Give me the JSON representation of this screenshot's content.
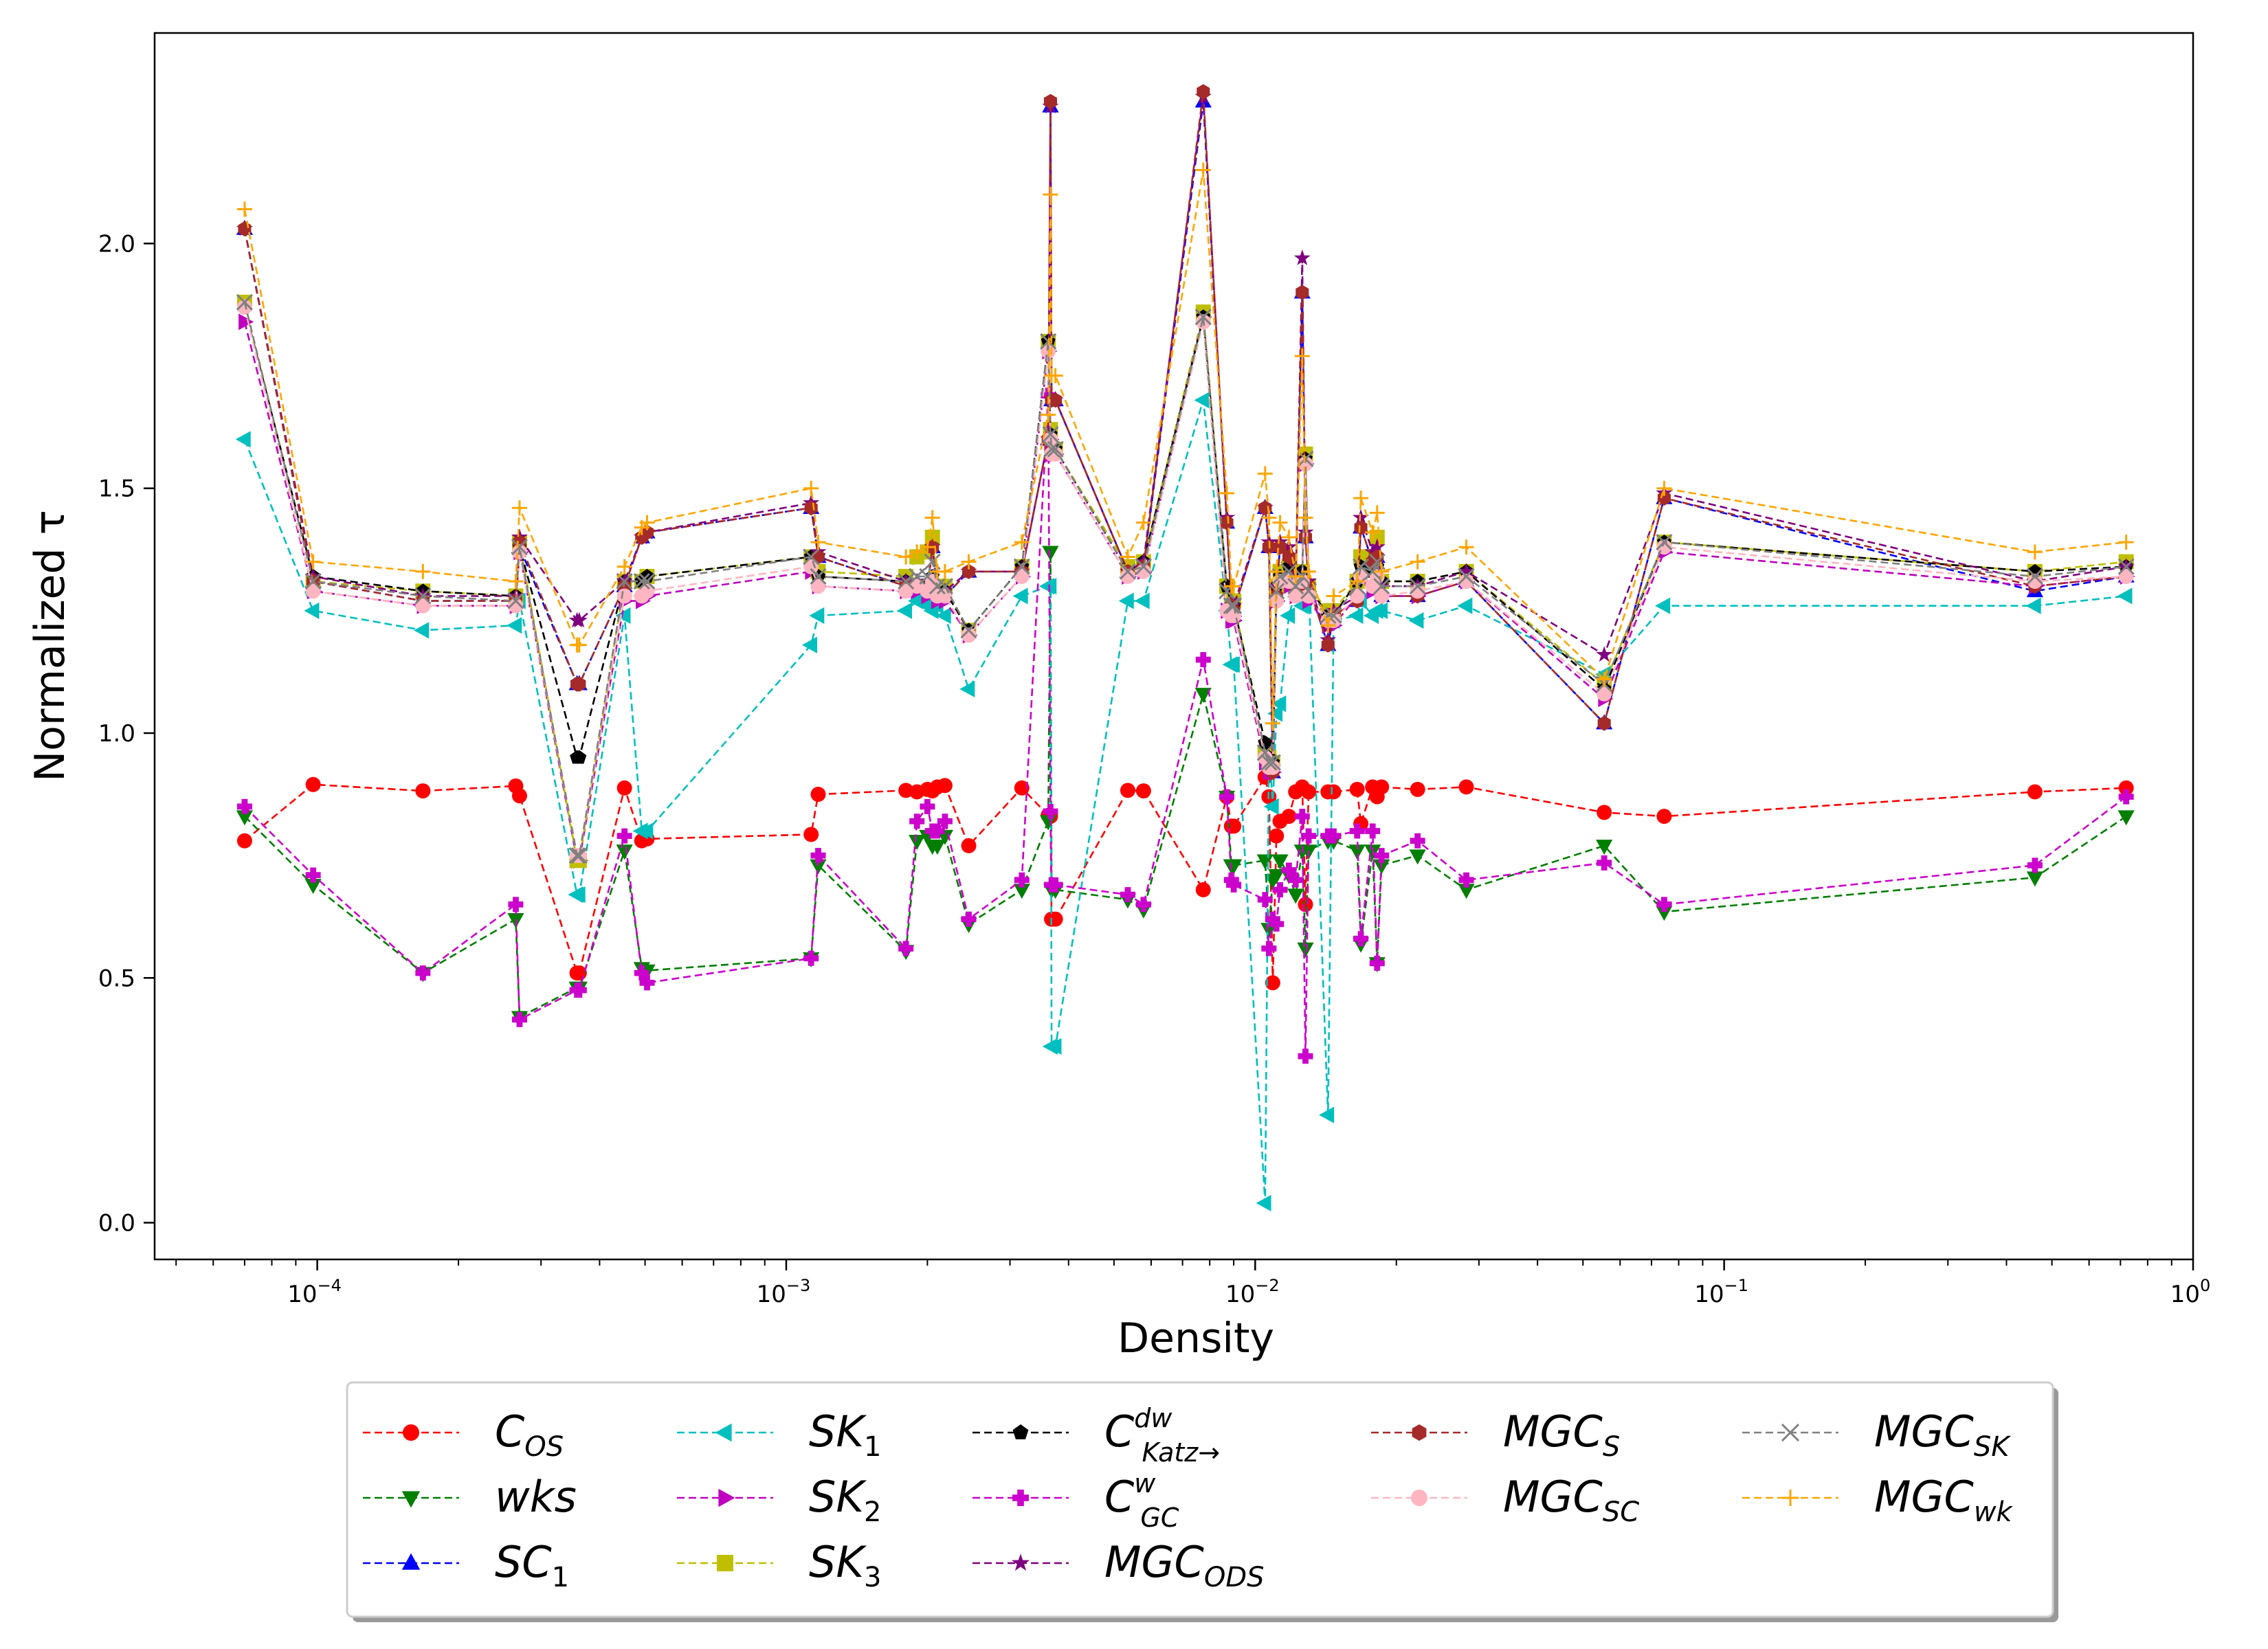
{
  "chart_data": {
    "type": "line",
    "xscale": "log",
    "xlabel": "Density",
    "ylabel": "Normalized τ",
    "xlim": [
      4.5e-05,
      1.0
    ],
    "ylim": [
      -0.075,
      2.43
    ],
    "x_ticks": [
      {
        "value": 0.0001,
        "base": "10",
        "exp": "−4"
      },
      {
        "value": 0.001,
        "base": "10",
        "exp": "−3"
      },
      {
        "value": 0.01,
        "base": "10",
        "exp": "−2"
      },
      {
        "value": 0.1,
        "base": "10",
        "exp": "−1"
      },
      {
        "value": 1,
        "base": "10",
        "exp": "0"
      }
    ],
    "y_ticks": [
      {
        "value": 0.0,
        "label": "0.0"
      },
      {
        "value": 0.5,
        "label": "0.5"
      },
      {
        "value": 1.0,
        "label": "1.0"
      },
      {
        "value": 1.5,
        "label": "1.5"
      },
      {
        "value": 2.0,
        "label": "2.0"
      }
    ],
    "x": [
      7e-05,
      9.8e-05,
      0.000168,
      0.000265,
      0.00027,
      0.000358,
      0.000362,
      0.000452,
      0.000492,
      0.000505,
      0.00113,
      0.00117,
      0.0018,
      0.0019,
      0.002,
      0.00205,
      0.0021,
      0.00218,
      0.00245,
      0.00318,
      0.00362,
      0.00366,
      0.00368,
      0.00375,
      0.00535,
      0.00578,
      0.00775,
      0.0087,
      0.0089,
      0.009,
      0.0105,
      0.0107,
      0.0109,
      0.0111,
      0.0113,
      0.0118,
      0.0122,
      0.0126,
      0.0128,
      0.013,
      0.0143,
      0.0147,
      0.0165,
      0.0168,
      0.0178,
      0.0182,
      0.0186,
      0.0222,
      0.0282,
      0.0555,
      0.0745,
      0.46,
      0.72
    ],
    "series": [
      {
        "name": "C_OS",
        "label_main": "C",
        "label_sub": "OS",
        "label_sup": "",
        "color": "#ff0000",
        "marker": "circle",
        "values": [
          0.78,
          0.895,
          0.882,
          0.892,
          0.872,
          0.51,
          0.51,
          0.888,
          0.78,
          0.784,
          0.793,
          0.875,
          0.883,
          0.88,
          0.885,
          0.882,
          0.89,
          0.893,
          0.77,
          0.888,
          0.832,
          0.83,
          0.62,
          0.62,
          0.883,
          0.882,
          0.68,
          0.87,
          0.81,
          0.81,
          0.91,
          0.87,
          0.49,
          0.79,
          0.82,
          0.83,
          0.88,
          0.89,
          0.65,
          0.88,
          0.88,
          0.88,
          0.885,
          0.815,
          0.89,
          0.87,
          0.89,
          0.885,
          0.89,
          0.838,
          0.83,
          0.88,
          0.888
        ]
      },
      {
        "name": "wks",
        "label_main": "wks",
        "label_sub": "",
        "label_sup": "",
        "color": "#007f00",
        "marker": "tri-down",
        "values": [
          0.83,
          0.69,
          0.51,
          0.62,
          0.42,
          0.48,
          0.48,
          0.76,
          0.52,
          0.515,
          0.54,
          0.73,
          0.555,
          0.78,
          0.79,
          0.77,
          0.77,
          0.79,
          0.61,
          0.68,
          0.82,
          1.37,
          0.68,
          0.68,
          0.66,
          0.64,
          1.08,
          0.87,
          0.73,
          0.73,
          0.74,
          0.6,
          0.7,
          0.71,
          0.74,
          0.71,
          0.67,
          0.76,
          0.56,
          0.76,
          0.78,
          0.78,
          0.76,
          0.57,
          0.76,
          0.53,
          0.73,
          0.75,
          0.68,
          0.77,
          0.635,
          0.705,
          0.83
        ]
      },
      {
        "name": "SC_1",
        "label_main": "SC",
        "label_sub": "1",
        "label_sup": "",
        "color": "#0000ff",
        "marker": "tri-up",
        "values": [
          2.03,
          1.31,
          1.27,
          1.27,
          1.38,
          1.1,
          1.1,
          1.3,
          1.4,
          1.41,
          1.46,
          1.36,
          1.3,
          1.3,
          1.29,
          1.38,
          1.28,
          1.28,
          1.33,
          1.33,
          1.6,
          2.28,
          1.68,
          1.68,
          1.33,
          1.34,
          2.29,
          1.43,
          1.26,
          1.25,
          1.46,
          1.38,
          0.92,
          1.28,
          1.38,
          1.36,
          1.29,
          1.9,
          1.4,
          1.3,
          1.18,
          1.24,
          1.27,
          1.42,
          1.35,
          1.36,
          1.28,
          1.28,
          1.31,
          1.02,
          1.48,
          1.29,
          1.32
        ]
      },
      {
        "name": "SK_1",
        "label_main": "SK",
        "label_sub": "1",
        "label_sup": "",
        "color": "#00bfbf",
        "marker": "tri-left",
        "values": [
          1.6,
          1.25,
          1.21,
          1.22,
          1.27,
          0.67,
          0.67,
          1.24,
          0.8,
          0.8,
          1.18,
          1.24,
          1.25,
          1.27,
          1.26,
          1.25,
          1.26,
          1.24,
          1.09,
          1.28,
          1.3,
          1.3,
          0.36,
          0.36,
          1.27,
          1.27,
          1.68,
          1.25,
          1.14,
          1.14,
          0.04,
          0.98,
          0.85,
          1.04,
          1.06,
          1.24,
          1.29,
          1.26,
          1.26,
          1.3,
          0.22,
          1.23,
          1.24,
          1.27,
          1.24,
          1.25,
          1.25,
          1.23,
          1.26,
          1.12,
          1.26,
          1.26,
          1.28
        ]
      },
      {
        "name": "SK_2",
        "label_main": "SK",
        "label_sub": "2",
        "label_sup": "",
        "color": "#bf00bf",
        "marker": "tri-right",
        "values": [
          1.84,
          1.29,
          1.26,
          1.26,
          1.37,
          0.74,
          0.74,
          1.27,
          1.27,
          1.28,
          1.33,
          1.3,
          1.29,
          1.29,
          1.28,
          1.31,
          1.27,
          1.27,
          1.2,
          1.32,
          1.78,
          1.6,
          1.57,
          1.57,
          1.32,
          1.33,
          1.85,
          1.25,
          1.23,
          1.23,
          0.94,
          0.92,
          0.92,
          1.27,
          1.3,
          1.3,
          1.28,
          1.3,
          1.55,
          1.27,
          1.22,
          1.22,
          1.28,
          1.31,
          1.29,
          1.31,
          1.28,
          1.28,
          1.31,
          1.07,
          1.37,
          1.3,
          1.32
        ]
      },
      {
        "name": "SK_3",
        "label_main": "SK",
        "label_sub": "3",
        "label_sup": "",
        "color": "#bfbf00",
        "marker": "square",
        "values": [
          1.88,
          1.31,
          1.29,
          1.28,
          1.39,
          0.74,
          0.74,
          1.31,
          1.31,
          1.32,
          1.36,
          1.33,
          1.32,
          1.36,
          1.37,
          1.4,
          1.3,
          1.3,
          1.21,
          1.34,
          1.8,
          1.62,
          1.58,
          1.58,
          1.34,
          1.35,
          1.86,
          1.3,
          1.27,
          1.27,
          0.96,
          0.95,
          0.94,
          1.3,
          1.33,
          1.34,
          1.31,
          1.33,
          1.57,
          1.3,
          1.25,
          1.25,
          1.31,
          1.36,
          1.36,
          1.4,
          1.31,
          1.31,
          1.33,
          1.1,
          1.39,
          1.33,
          1.35
        ]
      },
      {
        "name": "C_Katz",
        "label_main": "C",
        "label_sub": "Katz→",
        "label_sup": "dw",
        "color": "#000000",
        "marker": "pentagon",
        "values": [
          1.87,
          1.32,
          1.29,
          1.28,
          1.38,
          0.95,
          0.95,
          1.31,
          1.31,
          1.32,
          1.36,
          1.32,
          1.31,
          1.3,
          1.3,
          1.32,
          1.29,
          1.29,
          1.21,
          1.34,
          1.8,
          1.61,
          1.58,
          1.58,
          1.33,
          1.35,
          1.85,
          1.3,
          1.26,
          1.26,
          0.98,
          0.95,
          0.94,
          1.3,
          1.32,
          1.34,
          1.31,
          1.33,
          1.56,
          1.3,
          1.24,
          1.24,
          1.31,
          1.34,
          1.33,
          1.34,
          1.31,
          1.31,
          1.33,
          1.09,
          1.39,
          1.33,
          1.34
        ]
      },
      {
        "name": "C_GC",
        "label_main": "C",
        "label_sub": "GC",
        "label_sup": "w",
        "color": "#cc00cc",
        "marker": "plus",
        "values": [
          0.85,
          0.71,
          0.51,
          0.65,
          0.415,
          0.475,
          0.475,
          0.79,
          0.51,
          0.49,
          0.54,
          0.75,
          0.56,
          0.82,
          0.85,
          0.8,
          0.8,
          0.82,
          0.62,
          0.7,
          1.69,
          0.84,
          0.69,
          0.69,
          0.67,
          0.65,
          1.15,
          0.87,
          0.7,
          0.69,
          0.66,
          0.56,
          0.62,
          0.61,
          0.68,
          0.72,
          0.7,
          0.83,
          0.34,
          0.79,
          0.79,
          0.79,
          0.8,
          0.58,
          0.8,
          0.53,
          0.75,
          0.78,
          0.7,
          0.735,
          0.65,
          0.73,
          0.87
        ]
      },
      {
        "name": "MGC_ODS",
        "label_main": "MGC",
        "label_sub": "ODS",
        "label_sup": "",
        "color": "#7f007f",
        "marker": "star",
        "values": [
          2.03,
          1.32,
          1.28,
          1.28,
          1.4,
          1.23,
          1.23,
          1.31,
          1.4,
          1.41,
          1.47,
          1.37,
          1.31,
          1.31,
          1.3,
          1.38,
          1.29,
          1.29,
          1.33,
          1.33,
          1.6,
          2.28,
          1.68,
          1.68,
          1.33,
          1.35,
          2.3,
          1.44,
          1.27,
          1.26,
          1.46,
          1.39,
          0.93,
          1.3,
          1.39,
          1.38,
          1.3,
          1.97,
          1.41,
          1.31,
          1.19,
          1.25,
          1.28,
          1.44,
          1.37,
          1.38,
          1.3,
          1.3,
          1.33,
          1.16,
          1.49,
          1.31,
          1.34
        ]
      },
      {
        "name": "MGC_S",
        "label_main": "MGC",
        "label_sub": "S",
        "label_sup": "",
        "color": "#a52a2a",
        "marker": "hexagon",
        "values": [
          2.03,
          1.31,
          1.27,
          1.27,
          1.39,
          1.1,
          1.1,
          1.3,
          1.4,
          1.41,
          1.46,
          1.36,
          1.3,
          1.3,
          1.29,
          1.38,
          1.28,
          1.28,
          1.33,
          1.33,
          1.6,
          2.29,
          1.68,
          1.68,
          1.33,
          1.34,
          2.31,
          1.43,
          1.26,
          1.25,
          1.46,
          1.38,
          0.92,
          1.28,
          1.38,
          1.36,
          1.29,
          1.9,
          1.4,
          1.3,
          1.18,
          1.24,
          1.27,
          1.42,
          1.35,
          1.36,
          1.28,
          1.28,
          1.31,
          1.02,
          1.48,
          1.3,
          1.32
        ]
      },
      {
        "name": "MGC_SC",
        "label_main": "MGC",
        "label_sub": "SC",
        "label_sup": "",
        "color": "#ffb6c1",
        "marker": "circle",
        "values": [
          1.87,
          1.29,
          1.26,
          1.26,
          1.37,
          0.75,
          0.75,
          1.28,
          1.28,
          1.29,
          1.34,
          1.3,
          1.29,
          1.3,
          1.29,
          1.31,
          1.28,
          1.28,
          1.2,
          1.32,
          1.78,
          1.6,
          1.57,
          1.57,
          1.32,
          1.33,
          1.84,
          1.25,
          1.24,
          1.24,
          0.95,
          0.93,
          0.93,
          1.27,
          1.31,
          1.31,
          1.28,
          1.31,
          1.55,
          1.28,
          1.23,
          1.23,
          1.28,
          1.32,
          1.3,
          1.32,
          1.28,
          1.29,
          1.31,
          1.08,
          1.38,
          1.31,
          1.32
        ]
      },
      {
        "name": "MGC_SK",
        "label_main": "MGC",
        "label_sub": "SK",
        "label_sup": "",
        "color": "#808080",
        "marker": "x",
        "values": [
          1.88,
          1.31,
          1.28,
          1.27,
          1.38,
          0.75,
          0.75,
          1.31,
          1.31,
          1.31,
          1.36,
          1.32,
          1.31,
          1.32,
          1.32,
          1.35,
          1.3,
          1.3,
          1.21,
          1.34,
          1.8,
          1.61,
          1.58,
          1.58,
          1.33,
          1.34,
          1.85,
          1.29,
          1.26,
          1.26,
          0.96,
          0.94,
          0.94,
          1.29,
          1.32,
          1.33,
          1.3,
          1.32,
          1.56,
          1.29,
          1.24,
          1.24,
          1.3,
          1.34,
          1.33,
          1.35,
          1.3,
          1.3,
          1.32,
          1.1,
          1.39,
          1.32,
          1.34
        ]
      },
      {
        "name": "MGC_wk",
        "label_main": "MGC",
        "label_sub": "wk",
        "label_sup": "",
        "color": "#ffa500",
        "marker": "plus-thin",
        "values": [
          2.07,
          1.35,
          1.33,
          1.31,
          1.46,
          1.18,
          1.18,
          1.34,
          1.42,
          1.43,
          1.5,
          1.39,
          1.36,
          1.37,
          1.38,
          1.44,
          1.33,
          1.33,
          1.35,
          1.39,
          1.65,
          2.1,
          1.73,
          1.73,
          1.36,
          1.43,
          2.15,
          1.49,
          1.3,
          1.3,
          1.53,
          1.44,
          1.02,
          1.33,
          1.43,
          1.4,
          1.32,
          1.77,
          1.44,
          1.33,
          1.22,
          1.28,
          1.31,
          1.48,
          1.41,
          1.45,
          1.33,
          1.35,
          1.38,
          1.11,
          1.5,
          1.37,
          1.39
        ]
      }
    ]
  }
}
